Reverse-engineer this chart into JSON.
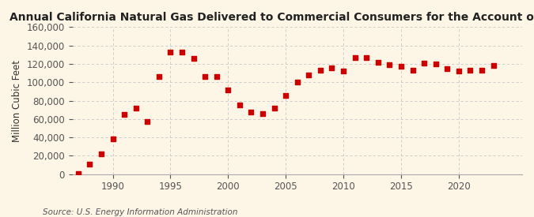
{
  "title": "Annual California Natural Gas Delivered to Commercial Consumers for the Account of Others",
  "ylabel": "Million Cubic Feet",
  "source": "Source: U.S. Energy Information Administration",
  "background_color": "#fdf5e6",
  "marker_color": "#cc0000",
  "years": [
    1987,
    1988,
    1989,
    1990,
    1991,
    1992,
    1993,
    1994,
    1995,
    1996,
    1997,
    1998,
    1999,
    2000,
    2001,
    2002,
    2003,
    2004,
    2005,
    2006,
    2007,
    2008,
    2009,
    2010,
    2011,
    2012,
    2013,
    2014,
    2015,
    2016,
    2017,
    2018,
    2019,
    2020,
    2021,
    2022,
    2023
  ],
  "values": [
    800,
    11000,
    22000,
    38000,
    65000,
    72000,
    57000,
    106000,
    133000,
    133000,
    126000,
    106000,
    106000,
    92000,
    75000,
    68000,
    66000,
    72000,
    86000,
    100000,
    108000,
    113000,
    116000,
    112000,
    127000,
    127000,
    122000,
    119000,
    117000,
    113000,
    121000,
    120000,
    115000,
    112000,
    113000,
    113000,
    118000
  ],
  "ylim": [
    0,
    160000
  ],
  "yticks": [
    0,
    20000,
    40000,
    60000,
    80000,
    100000,
    120000,
    140000,
    160000
  ],
  "xticks": [
    1990,
    1995,
    2000,
    2005,
    2010,
    2015,
    2020
  ],
  "xlim": [
    1986.5,
    2025.5
  ],
  "grid_color": "#c8c8c8",
  "title_fontsize": 10.0,
  "axis_fontsize": 8.5,
  "source_fontsize": 7.5
}
